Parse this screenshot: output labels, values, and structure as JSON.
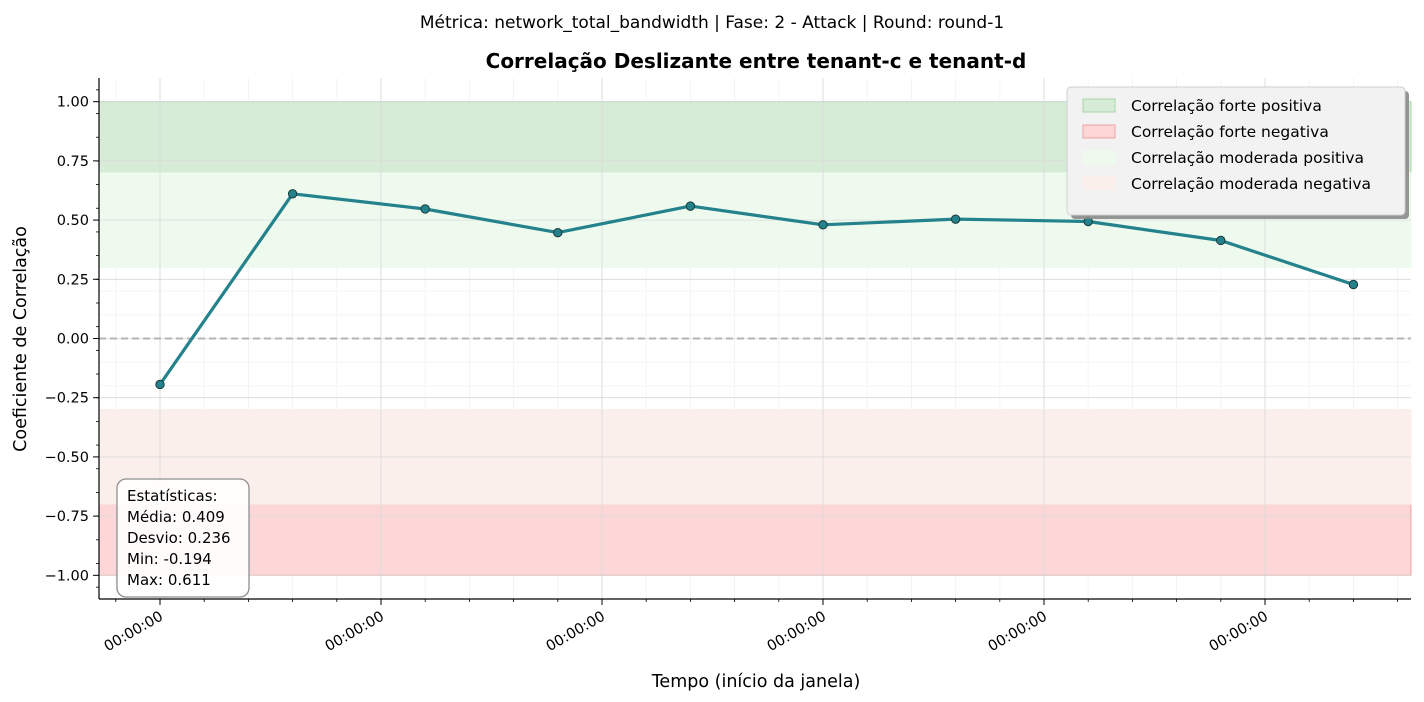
{
  "suptitle": "Métrica: network_total_bandwidth | Fase: 2 - Attack | Round: round-1",
  "chart_data": {
    "type": "line",
    "title": "Correlação Deslizante entre tenant-c e tenant-d",
    "xlabel": "Tempo (início da janela)",
    "ylabel": "Coeficiente de Correlação",
    "ylim": [
      -1.1,
      1.1
    ],
    "yticks": [
      1.0,
      0.75,
      0.5,
      0.25,
      0.0,
      -0.25,
      -0.5,
      -0.75,
      -1.0
    ],
    "ytick_labels": [
      "1.00",
      "0.75",
      "0.50",
      "0.25",
      "0.00",
      "−0.25",
      "−0.50",
      "−0.75",
      "−1.00"
    ],
    "xtick_labels": [
      "00:00:00",
      "00:00:00",
      "00:00:00",
      "00:00:00",
      "00:00:00",
      "00:00:00"
    ],
    "grid": true,
    "series": [
      {
        "color": "#23828c",
        "values": [
          -0.194,
          0.611,
          0.547,
          0.447,
          0.559,
          0.48,
          0.504,
          0.494,
          0.414,
          0.228
        ]
      }
    ],
    "zero_line": 0.0,
    "bands": [
      {
        "label": "Correlação forte positiva",
        "from": 0.7,
        "to": 1.0,
        "color": "#d6ecd6",
        "edge": "#a8d4a8"
      },
      {
        "label": "Correlação forte negativa",
        "from": -1.0,
        "to": -0.7,
        "color": "#fdd7d7",
        "edge": "#f0a0a0"
      },
      {
        "label": "Correlação moderada positiva",
        "from": 0.3,
        "to": 0.7,
        "color": "#eefaee",
        "edge": "#eefaee"
      },
      {
        "label": "Correlação moderada negativa",
        "from": -0.7,
        "to": -0.3,
        "color": "#fbefec",
        "edge": "#fbefec"
      }
    ],
    "legend_position": "top-right",
    "stats": {
      "heading": "Estatísticas:",
      "lines": [
        "Média: 0.409",
        "Desvio: 0.236",
        "Min: -0.194",
        "Max: 0.611"
      ]
    }
  }
}
